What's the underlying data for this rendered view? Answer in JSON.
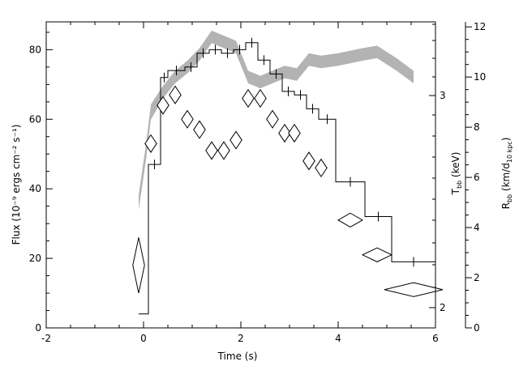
{
  "chart_data": {
    "type": "line",
    "xlabel": "Time (s)",
    "ylabel_left": "Flux (10⁻⁹ ergs cm⁻² s⁻¹)",
    "ylabel_right_kev": "Tₕₕ (keV)",
    "ylabel_right_radius": "Rₕₕ (km/d₁₀ ₖₚₕ)",
    "ylabel_right_kev_main": "T",
    "ylabel_right_kev_sub": "bb",
    "ylabel_right_kev_unit": " (keV)",
    "ylabel_right_radius_main": "R",
    "ylabel_right_radius_sub": "bb",
    "ylabel_right_radius_unit_a": " (km/d",
    "ylabel_right_radius_unit_sub": "10 kpc",
    "ylabel_right_radius_unit_b": ")",
    "xlim": [
      -2,
      6
    ],
    "ylim_flux": [
      0,
      88
    ],
    "ylim_radius": [
      0,
      12.2
    ],
    "x_ticks": [
      "-2",
      "0",
      "2",
      "4",
      "6"
    ],
    "flux_ticks": [
      "0",
      "20",
      "40",
      "60",
      "80"
    ],
    "kev_ticks": [
      "2",
      "3"
    ],
    "radius_ticks": [
      "0",
      "2",
      "4",
      "6",
      "8",
      "10",
      "12"
    ],
    "series": [
      {
        "name": "flux",
        "style": "histogram with error bars",
        "bins": [
          {
            "x0": -0.1,
            "x1": 0.1,
            "y": 4
          },
          {
            "x0": 0.1,
            "x1": 0.35,
            "y": 47
          },
          {
            "x0": 0.35,
            "x1": 0.5,
            "y": 72
          },
          {
            "x0": 0.5,
            "x1": 0.85,
            "y": 74
          },
          {
            "x0": 0.85,
            "x1": 1.1,
            "y": 75
          },
          {
            "x0": 1.1,
            "x1": 1.35,
            "y": 79
          },
          {
            "x0": 1.35,
            "x1": 1.6,
            "y": 80
          },
          {
            "x0": 1.6,
            "x1": 1.85,
            "y": 79
          },
          {
            "x0": 1.85,
            "x1": 2.1,
            "y": 80
          },
          {
            "x0": 2.1,
            "x1": 2.35,
            "y": 82
          },
          {
            "x0": 2.35,
            "x1": 2.6,
            "y": 77
          },
          {
            "x0": 2.6,
            "x1": 2.85,
            "y": 73
          },
          {
            "x0": 2.85,
            "x1": 3.1,
            "y": 68
          },
          {
            "x0": 3.1,
            "x1": 3.35,
            "y": 67
          },
          {
            "x0": 3.35,
            "x1": 3.6,
            "y": 63
          },
          {
            "x0": 3.6,
            "x1": 3.95,
            "y": 60
          },
          {
            "x0": 3.95,
            "x1": 4.55,
            "y": 42
          },
          {
            "x0": 4.55,
            "x1": 5.1,
            "y": 32
          },
          {
            "x0": 5.1,
            "x1": 6.0,
            "y": 19
          }
        ]
      },
      {
        "name": "temperature (keV)",
        "style": "diamonds",
        "points": [
          {
            "x": -0.1,
            "y": 18,
            "dx": 0.12,
            "dy": 8
          },
          {
            "x": 0.15,
            "y": 53,
            "dx": 0.12,
            "dy": 2.5
          },
          {
            "x": 0.4,
            "y": 64,
            "dx": 0.12,
            "dy": 2.5
          },
          {
            "x": 0.65,
            "y": 67,
            "dx": 0.12,
            "dy": 2.5
          },
          {
            "x": 0.9,
            "y": 60,
            "dx": 0.12,
            "dy": 2.5
          },
          {
            "x": 1.15,
            "y": 57,
            "dx": 0.12,
            "dy": 2.5
          },
          {
            "x": 1.4,
            "y": 51,
            "dx": 0.12,
            "dy": 2.5
          },
          {
            "x": 1.65,
            "y": 51,
            "dx": 0.12,
            "dy": 2.5
          },
          {
            "x": 1.9,
            "y": 54,
            "dx": 0.12,
            "dy": 2.5
          },
          {
            "x": 2.15,
            "y": 66,
            "dx": 0.12,
            "dy": 2.5
          },
          {
            "x": 2.4,
            "y": 66,
            "dx": 0.12,
            "dy": 2.5
          },
          {
            "x": 2.65,
            "y": 60,
            "dx": 0.12,
            "dy": 2.5
          },
          {
            "x": 2.9,
            "y": 56,
            "dx": 0.12,
            "dy": 2.5
          },
          {
            "x": 3.1,
            "y": 56,
            "dx": 0.12,
            "dy": 2.5
          },
          {
            "x": 3.4,
            "y": 48,
            "dx": 0.12,
            "dy": 2.5
          },
          {
            "x": 3.65,
            "y": 46,
            "dx": 0.12,
            "dy": 2.5
          },
          {
            "x": 4.25,
            "y": 31,
            "dx": 0.25,
            "dy": 2
          },
          {
            "x": 4.8,
            "y": 21,
            "dx": 0.3,
            "dy": 2
          },
          {
            "x": 5.55,
            "y": 11,
            "dx": 0.6,
            "dy": 2
          }
        ]
      },
      {
        "name": "radius",
        "style": "grey band",
        "color": "#b3b3b3",
        "x": [
          -0.1,
          0.05,
          0.15,
          0.4,
          0.65,
          0.9,
          1.15,
          1.4,
          1.65,
          1.9,
          2.15,
          2.4,
          2.65,
          2.9,
          3.15,
          3.4,
          3.65,
          4.0,
          4.5,
          4.8,
          5.2,
          5.55
        ],
        "y": [
          5.0,
          7.0,
          8.6,
          9.4,
          10.0,
          10.4,
          10.9,
          11.6,
          11.4,
          11.2,
          10.0,
          9.8,
          10.0,
          10.2,
          10.1,
          10.7,
          10.6,
          10.7,
          10.9,
          11.0,
          10.5,
          10.0
        ],
        "halfwidth": [
          0.3,
          0.3,
          0.3,
          0.25,
          0.25,
          0.25,
          0.25,
          0.25,
          0.25,
          0.25,
          0.25,
          0.25,
          0.25,
          0.25,
          0.25,
          0.25,
          0.25,
          0.25,
          0.25,
          0.25,
          0.25,
          0.25
        ]
      }
    ]
  }
}
